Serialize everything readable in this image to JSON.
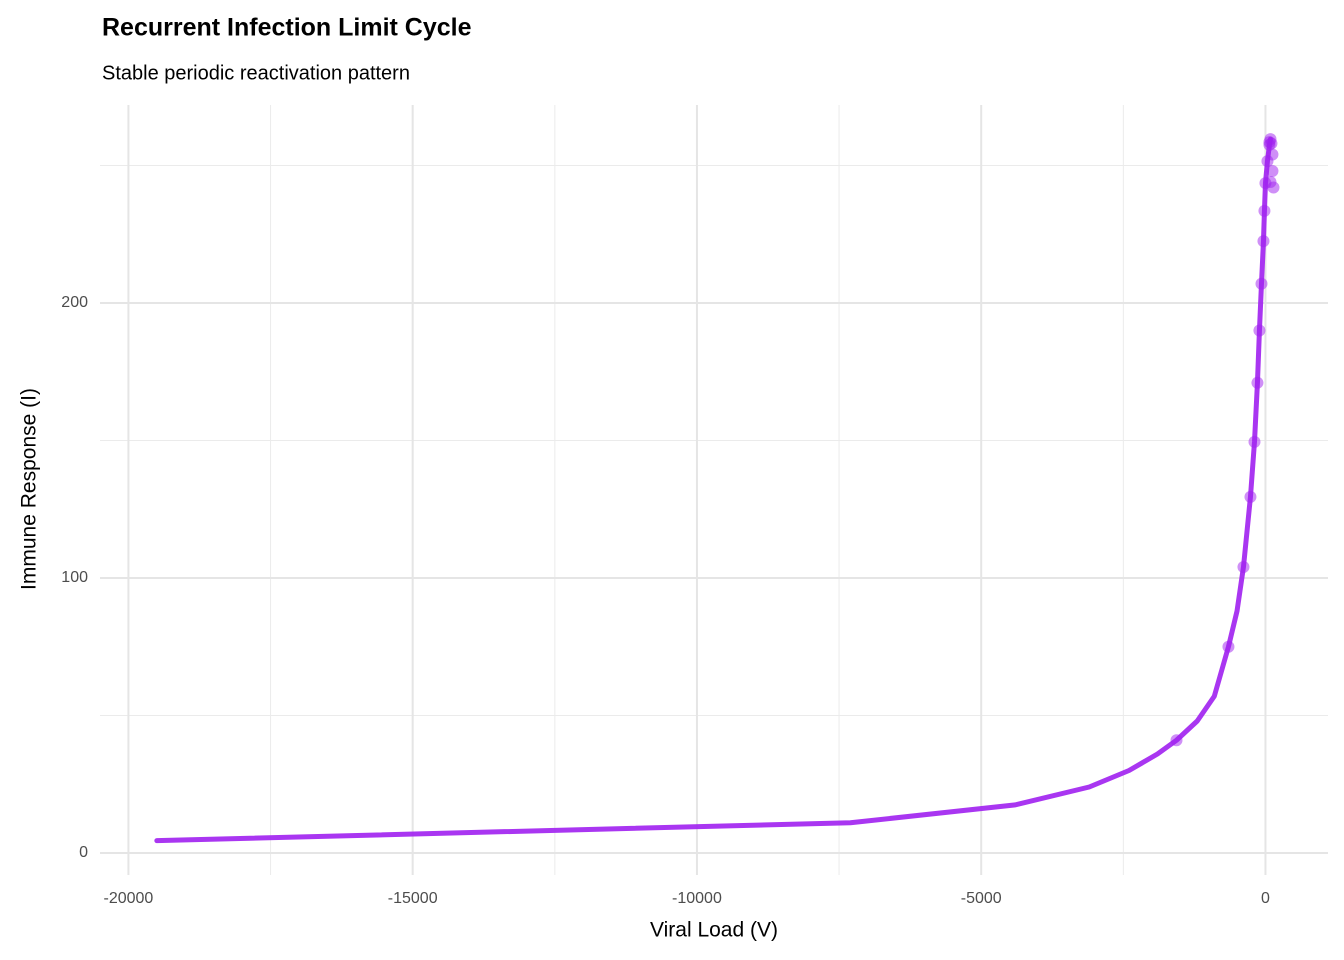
{
  "chart_data": {
    "type": "line",
    "title": "Recurrent Infection Limit Cycle",
    "subtitle": "Stable periodic reactivation pattern",
    "x_label": "Viral Load (V)",
    "y_label": "Immune Response (I)",
    "xlim": [
      -20500,
      1100
    ],
    "ylim": [
      -8,
      272
    ],
    "xticks": [
      -20000,
      -15000,
      -10000,
      -5000,
      0
    ],
    "yticks": [
      0,
      100,
      200
    ],
    "x_minor_grid": [
      -17500,
      -12500,
      -7500,
      -2500
    ],
    "y_minor_grid": [
      50,
      150,
      250
    ],
    "grid": true,
    "color": "#a020f0",
    "line": {
      "x": [
        -19500,
        -7300,
        -4400,
        -3100,
        -2400,
        -1900,
        -1565,
        -1200,
        -900,
        -651,
        -500,
        -387,
        -264,
        -193,
        -141,
        -106,
        -70,
        -35,
        -18,
        0,
        35,
        70,
        88
      ],
      "y": [
        4.5,
        11,
        17.5,
        24,
        30,
        36,
        41,
        48,
        57,
        75,
        88,
        104,
        129.5,
        149.5,
        171,
        190,
        207,
        222.5,
        233.5,
        243.6,
        251.6,
        257.5,
        259.6
      ]
    },
    "points": {
      "x": [
        -1565,
        -651,
        -387,
        -264,
        -193,
        -141,
        -106,
        -70,
        -35,
        -18,
        0,
        35,
        70,
        88,
        105,
        123,
        123,
        141,
        88,
        70
      ],
      "y": [
        41,
        75,
        104,
        129.5,
        149.5,
        171,
        190,
        207,
        222.5,
        233.5,
        243.6,
        251.6,
        257.5,
        259.6,
        258,
        254,
        248,
        242,
        244,
        258.5
      ]
    }
  }
}
